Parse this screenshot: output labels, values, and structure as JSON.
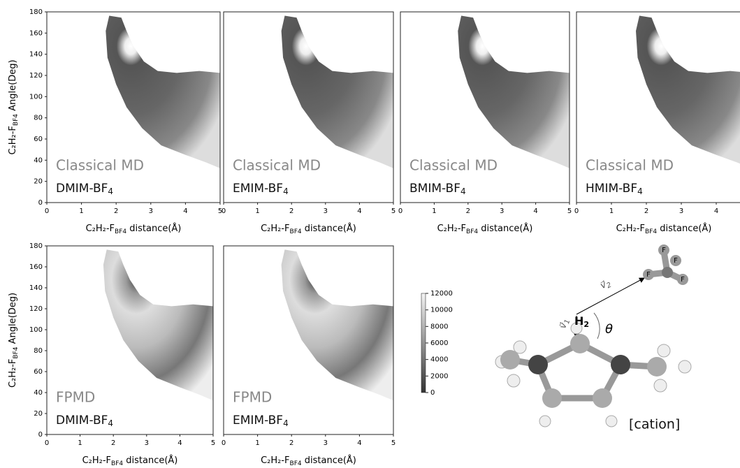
{
  "chart_data": {
    "type": "density-panels",
    "xlabel": {
      "main": "C₂H₂-F",
      "sub": "BF4",
      "tail": " distance(Å)"
    },
    "ylabel": {
      "main": "C₂H₂-F",
      "sub": "BF4",
      "tail": " Angle(Deg)"
    },
    "xlim": [
      0,
      5
    ],
    "xticks": [
      0,
      1,
      2,
      3,
      4,
      5
    ],
    "ylim": [
      0,
      180
    ],
    "yticks": [
      0,
      20,
      40,
      60,
      80,
      100,
      120,
      140,
      160,
      180
    ],
    "panels": [
      {
        "method": "Classical MD",
        "system": {
          "main": "DMIM-BF",
          "sub": "4"
        }
      },
      {
        "method": "Classical MD",
        "system": {
          "main": "EMIM-BF",
          "sub": "4"
        }
      },
      {
        "method": "Classical MD",
        "system": {
          "main": "BMIM-BF",
          "sub": "4"
        }
      },
      {
        "method": "Classical MD",
        "system": {
          "main": "HMIM-BF",
          "sub": "4"
        }
      },
      {
        "method": "FPMD",
        "system": {
          "main": "DMIM-BF",
          "sub": "4"
        }
      },
      {
        "method": "FPMD",
        "system": {
          "main": "EMIM-BF",
          "sub": "4"
        }
      }
    ],
    "colorbar": {
      "lim": [
        0,
        12000
      ],
      "ticks": [
        0,
        2000,
        4000,
        6000,
        8000,
        10000,
        12000
      ]
    }
  },
  "diagram": {
    "fluorines": [
      "F",
      "F",
      "F",
      "F"
    ],
    "hydrogen": {
      "main": "H",
      "sub": "2"
    },
    "angle": "θ",
    "vector1": {
      "main": "v⃗",
      "sub": "1"
    },
    "vector2": {
      "main": "v⃗",
      "sub": "2"
    },
    "cation": "[cation]"
  }
}
